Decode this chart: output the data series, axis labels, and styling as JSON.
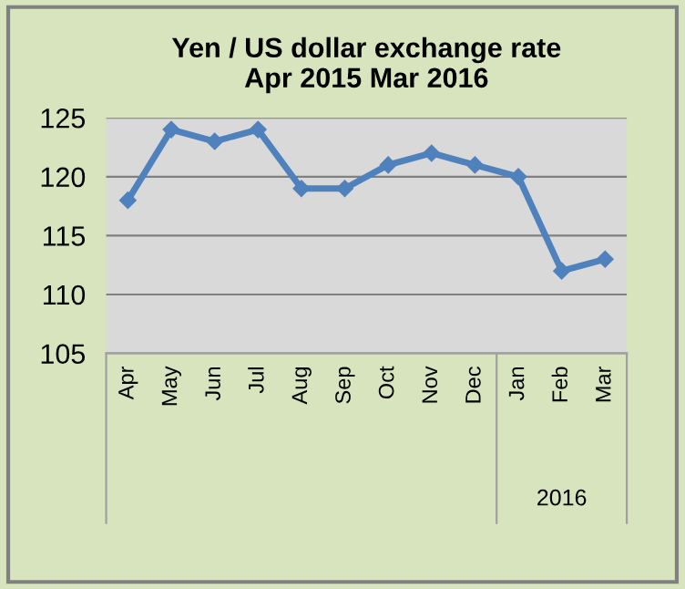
{
  "chart_data": {
    "type": "line",
    "title": "Yen / US dollar exchange rate\nApr 2015 Mar 2016",
    "categories": [
      "Apr",
      "May",
      "Jun",
      "Jul",
      "Aug",
      "Sep",
      "Oct",
      "Nov",
      "Dec",
      "Jan",
      "Feb",
      "Mar"
    ],
    "series": [
      {
        "color": "#4f81bd",
        "values": [
          118,
          124,
          123,
          124,
          119,
          119,
          121,
          122,
          121,
          120,
          112,
          113
        ]
      }
    ],
    "ylim": [
      105,
      125
    ],
    "yticks": [
      105,
      110,
      115,
      120,
      125
    ],
    "grid": "y",
    "marker": "diamond",
    "line_style": "solid",
    "legend": false,
    "annotations": [
      "2016"
    ]
  }
}
